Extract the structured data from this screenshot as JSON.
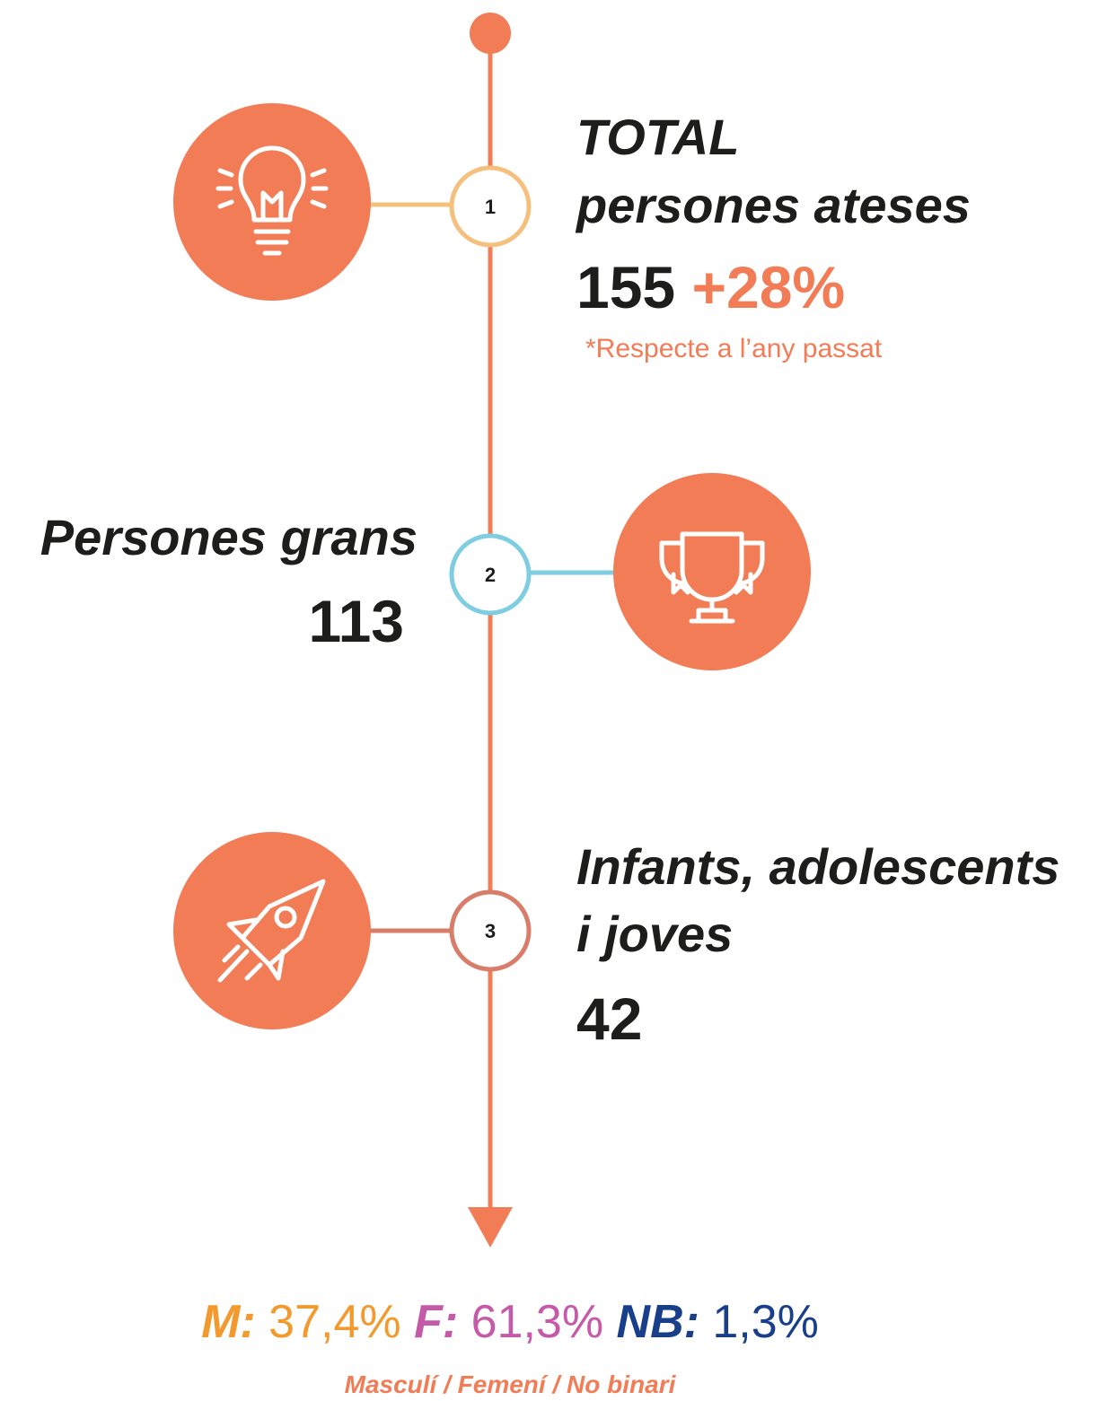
{
  "items": [
    {
      "step": "1",
      "title_lines": [
        "TOTAL",
        "persones ateses"
      ],
      "value": "155",
      "change": "+28%",
      "note": "*Respecte a l’any passat"
    },
    {
      "step": "2",
      "title_lines": [
        "Persones grans"
      ],
      "value": "113"
    },
    {
      "step": "3",
      "title_lines": [
        "Infants, adolescents",
        "i joves"
      ],
      "value": "42"
    }
  ],
  "footer": {
    "groups": [
      {
        "key": "M:",
        "value": "37,4%"
      },
      {
        "key": "F:",
        "value": "61,3%"
      },
      {
        "key": "NB:",
        "value": "1,3%"
      }
    ],
    "legend": "Masculí / Femení / No binari"
  }
}
